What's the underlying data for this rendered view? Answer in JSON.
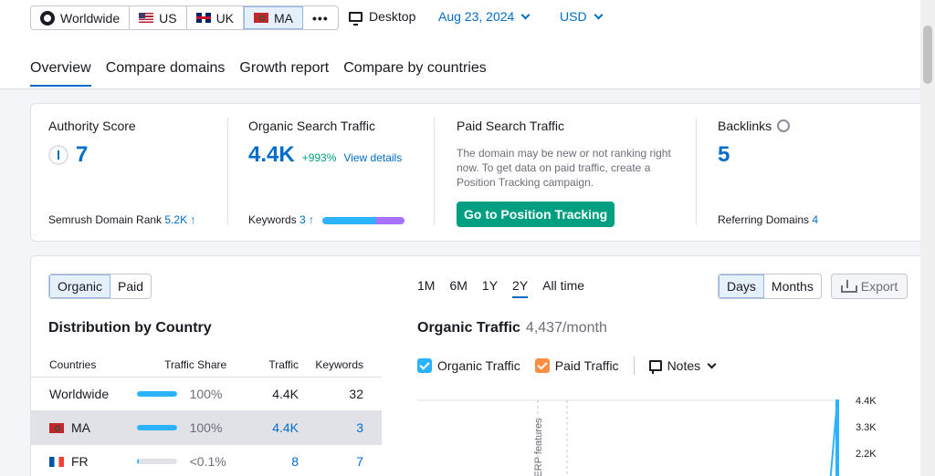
{
  "filters": {
    "geo": [
      {
        "label": "Worldwide",
        "icon": "globe-icon"
      },
      {
        "label": "US",
        "icon": "us-flag-icon"
      },
      {
        "label": "UK",
        "icon": "uk-flag-icon"
      },
      {
        "label": "MA",
        "icon": "ma-flag-icon",
        "active": true
      }
    ],
    "more": "•••",
    "device": "Desktop",
    "date": "Aug 23, 2024",
    "currency": "USD"
  },
  "tabs": [
    "Overview",
    "Compare domains",
    "Growth report",
    "Compare by countries"
  ],
  "summary": {
    "authority": {
      "title": "Authority Score",
      "value": "7",
      "sub_label": "Semrush Domain Rank",
      "sub_value": "5.2K ↑"
    },
    "organic": {
      "title": "Organic Search Traffic",
      "value": "4.4K",
      "change": "+993%",
      "link": "View details",
      "kw_label": "Keywords",
      "kw_value": "3 ↑"
    },
    "paid": {
      "title": "Paid Search Traffic",
      "text": "The domain may be new or not ranking right now. To get data on paid traffic, create a Position Tracking campaign.",
      "button": "Go to Position Tracking"
    },
    "backlinks": {
      "title": "Backlinks",
      "value": "5",
      "sub_label": "Referring Domains",
      "sub_value": "4"
    }
  },
  "main": {
    "type_toggle": [
      "Organic",
      "Paid"
    ],
    "periods": [
      "1M",
      "6M",
      "1Y",
      "2Y",
      "All time"
    ],
    "active_period": "2Y",
    "granularity": [
      "Days",
      "Months"
    ],
    "export": "Export",
    "distribution_title": "Distribution by Country",
    "table": {
      "headers": [
        "Countries",
        "Traffic Share",
        "Traffic",
        "Keywords"
      ],
      "rows": [
        {
          "country": "Worldwide",
          "share": "100%",
          "share_frac": 1.0,
          "traffic": "4.4K",
          "keywords": "32"
        },
        {
          "country": "MA",
          "flag": "ma",
          "share": "100%",
          "share_frac": 1.0,
          "traffic": "4.4K",
          "keywords": "3"
        },
        {
          "country": "FR",
          "flag": "fr",
          "share": "<0.1%",
          "share_frac": 0.02,
          "traffic": "8",
          "keywords": "7"
        }
      ]
    },
    "organic_title": "Organic Traffic",
    "organic_sub": "4,437/month",
    "legend": {
      "organic": "Organic Traffic",
      "paid": "Paid Traffic",
      "notes": "Notes"
    },
    "colors": {
      "organic": "#2bb3ff",
      "paid": "#ff8c43",
      "accent": "#006dca",
      "cta": "#009f81"
    }
  },
  "chart_data": {
    "type": "line",
    "title": "Organic Traffic",
    "series": [
      {
        "name": "Organic Traffic",
        "values": [
          0,
          0,
          0,
          0,
          0,
          4437
        ]
      }
    ],
    "y_ticks": [
      "4.4K",
      "3.3K",
      "2.2K"
    ],
    "annotation": "SERP features",
    "ylim": [
      0,
      4400
    ]
  }
}
